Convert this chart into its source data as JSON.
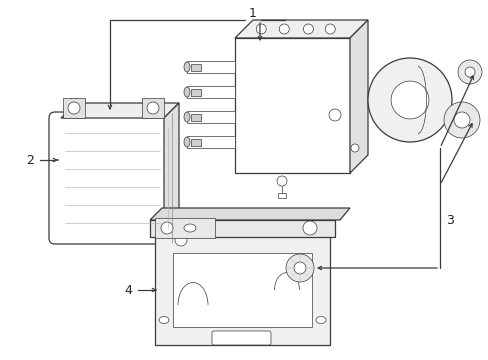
{
  "bg_color": "#ffffff",
  "lc": "#3a3a3a",
  "lc_light": "#888888",
  "fig_width": 4.89,
  "fig_height": 3.6,
  "dpi": 100,
  "lw": 0.9,
  "lw_thin": 0.5,
  "label_fontsize": 9
}
